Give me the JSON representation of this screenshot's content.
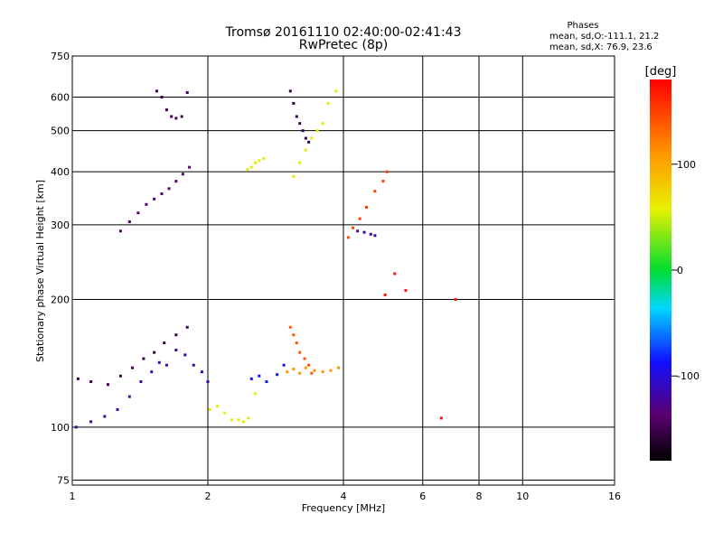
{
  "chart_data": {
    "type": "scatter",
    "title": "Tromsø 20161110 02:40:00-02:41:43",
    "subtitle": "RwPretec (8p)",
    "xlabel": "Frequency [MHz]",
    "ylabel": "Stationary phase Virtual Height [km]",
    "x_scale": "log",
    "y_scale": "log",
    "xlim": [
      1,
      16
    ],
    "ylim": [
      73,
      750
    ],
    "x_ticks": [
      1,
      2,
      4,
      6,
      8,
      10,
      16
    ],
    "y_ticks": [
      75,
      100,
      200,
      300,
      400,
      500,
      600,
      750
    ],
    "grid": true,
    "stats": {
      "title": "Phases",
      "line1": "mean, sd,O:-111.1, 21.2",
      "line2": "mean, sd,X:  76.9, 23.6"
    },
    "colorbar": {
      "label": "[deg]",
      "range": [
        -180,
        180
      ],
      "ticks": [
        100,
        0,
        -100
      ],
      "colormap": "rainbow"
    },
    "series": [
      {
        "x": [
          1.02,
          1.1,
          1.18,
          1.26,
          1.34,
          1.42,
          1.5,
          1.56,
          1.62,
          1.7,
          1.78,
          1.86,
          1.94,
          2.0
        ],
        "y": [
          100,
          103,
          106,
          110,
          118,
          128,
          135,
          142,
          140,
          152,
          148,
          140,
          135,
          128
        ],
        "phase": -120
      },
      {
        "x": [
          1.03,
          1.1,
          1.2,
          1.28,
          1.36,
          1.44,
          1.52,
          1.6,
          1.7,
          1.8
        ],
        "y": [
          130,
          128,
          126,
          132,
          138,
          145,
          150,
          158,
          165,
          172
        ],
        "phase": -150
      },
      {
        "x": [
          1.28,
          1.34,
          1.4,
          1.46,
          1.52,
          1.58,
          1.64,
          1.7,
          1.76,
          1.82
        ],
        "y": [
          290,
          305,
          320,
          335,
          345,
          355,
          365,
          380,
          395,
          410
        ],
        "phase": -135
      },
      {
        "x": [
          1.54,
          1.58,
          1.62,
          1.66,
          1.7,
          1.75,
          1.8
        ],
        "y": [
          620,
          600,
          560,
          540,
          535,
          540,
          615
        ],
        "phase": -150
      },
      {
        "x": [
          2.02,
          2.1,
          2.18,
          2.26,
          2.34,
          2.4,
          2.46,
          2.55
        ],
        "y": [
          110,
          112,
          108,
          104,
          104,
          103,
          105,
          120
        ],
        "phase": 60
      },
      {
        "x": [
          2.5,
          2.6,
          2.7,
          2.85,
          2.95
        ],
        "y": [
          130,
          132,
          128,
          133,
          140
        ],
        "phase": -85
      },
      {
        "x": [
          3.0,
          3.1,
          3.2,
          3.3,
          3.45,
          3.6,
          3.75,
          3.9
        ],
        "y": [
          135,
          137,
          134,
          138,
          136,
          135,
          136,
          138
        ],
        "phase": 110
      },
      {
        "x": [
          3.05,
          3.1,
          3.15,
          3.2,
          3.28,
          3.35,
          3.4
        ],
        "y": [
          172,
          165,
          158,
          150,
          145,
          140,
          134
        ],
        "phase": 140
      },
      {
        "x": [
          2.45,
          2.5,
          2.55,
          2.6,
          2.66
        ],
        "y": [
          405,
          410,
          420,
          425,
          430
        ],
        "phase": 55
      },
      {
        "x": [
          3.1,
          3.2,
          3.3,
          3.4,
          3.5,
          3.6,
          3.7,
          3.85
        ],
        "y": [
          390,
          420,
          450,
          480,
          500,
          520,
          580,
          620
        ],
        "phase": 60
      },
      {
        "x": [
          3.05,
          3.1,
          3.15,
          3.2,
          3.25,
          3.3,
          3.35
        ],
        "y": [
          620,
          580,
          540,
          520,
          500,
          480,
          470
        ],
        "phase": -155
      },
      {
        "x": [
          4.1,
          4.2,
          4.35,
          4.5,
          4.7,
          4.9,
          5.0
        ],
        "y": [
          280,
          295,
          310,
          330,
          360,
          380,
          400
        ],
        "phase": 150
      },
      {
        "x": [
          4.3,
          4.45,
          4.6,
          4.7
        ],
        "y": [
          290,
          288,
          285,
          283
        ],
        "phase": -115
      },
      {
        "x": [
          4.95,
          5.2,
          5.5,
          6.6,
          7.1
        ],
        "y": [
          205,
          230,
          210,
          105,
          200
        ],
        "phase": 170
      }
    ]
  }
}
